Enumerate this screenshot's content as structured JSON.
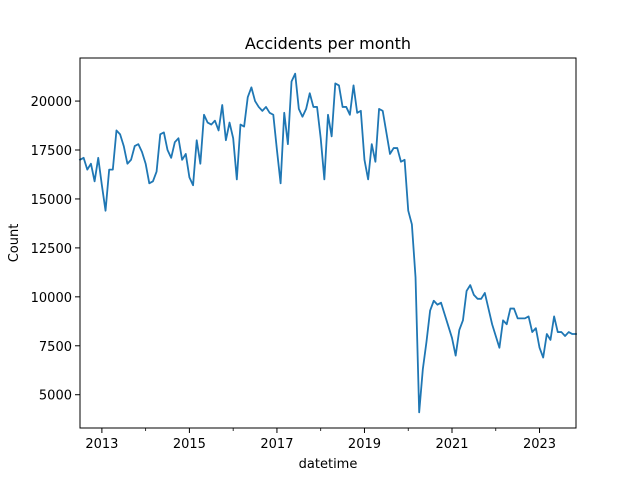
{
  "chart_data": {
    "type": "line",
    "title": "Accidents per month",
    "xlabel": "datetime",
    "ylabel": "Count",
    "x_axis": {
      "kind": "date",
      "range": [
        "2012-07",
        "2023-11"
      ],
      "major_ticks": [
        {
          "value": "2013-01",
          "label": "2013"
        },
        {
          "value": "2015-01",
          "label": "2015"
        },
        {
          "value": "2017-01",
          "label": "2017"
        },
        {
          "value": "2019-01",
          "label": "2019"
        },
        {
          "value": "2021-01",
          "label": "2021"
        },
        {
          "value": "2023-01",
          "label": "2023"
        }
      ],
      "minor_ticks": [
        "2014-01",
        "2016-01",
        "2018-01",
        "2020-01",
        "2022-01"
      ]
    },
    "y_axis": {
      "range": [
        3300,
        22200
      ],
      "ticks": [
        {
          "value": 5000,
          "label": "5000"
        },
        {
          "value": 7500,
          "label": "7500"
        },
        {
          "value": 10000,
          "label": "10000"
        },
        {
          "value": 12500,
          "label": "12500"
        },
        {
          "value": 15000,
          "label": "15000"
        },
        {
          "value": 17500,
          "label": "17500"
        },
        {
          "value": 20000,
          "label": "20000"
        }
      ]
    },
    "grid": false,
    "series": [
      {
        "color": "#1f77b4",
        "x": [
          "2012-07",
          "2012-08",
          "2012-09",
          "2012-10",
          "2012-11",
          "2012-12",
          "2013-01",
          "2013-02",
          "2013-03",
          "2013-04",
          "2013-05",
          "2013-06",
          "2013-07",
          "2013-08",
          "2013-09",
          "2013-10",
          "2013-11",
          "2013-12",
          "2014-01",
          "2014-02",
          "2014-03",
          "2014-04",
          "2014-05",
          "2014-06",
          "2014-07",
          "2014-08",
          "2014-09",
          "2014-10",
          "2014-11",
          "2014-12",
          "2015-01",
          "2015-02",
          "2015-03",
          "2015-04",
          "2015-05",
          "2015-06",
          "2015-07",
          "2015-08",
          "2015-09",
          "2015-10",
          "2015-11",
          "2015-12",
          "2016-01",
          "2016-02",
          "2016-03",
          "2016-04",
          "2016-05",
          "2016-06",
          "2016-07",
          "2016-08",
          "2016-09",
          "2016-10",
          "2016-11",
          "2016-12",
          "2017-01",
          "2017-02",
          "2017-03",
          "2017-04",
          "2017-05",
          "2017-06",
          "2017-07",
          "2017-08",
          "2017-09",
          "2017-10",
          "2017-11",
          "2017-12",
          "2018-01",
          "2018-02",
          "2018-03",
          "2018-04",
          "2018-05",
          "2018-06",
          "2018-07",
          "2018-08",
          "2018-09",
          "2018-10",
          "2018-11",
          "2018-12",
          "2019-01",
          "2019-02",
          "2019-03",
          "2019-04",
          "2019-05",
          "2019-06",
          "2019-07",
          "2019-08",
          "2019-09",
          "2019-10",
          "2019-11",
          "2019-12",
          "2020-01",
          "2020-02",
          "2020-03",
          "2020-04",
          "2020-05",
          "2020-06",
          "2020-07",
          "2020-08",
          "2020-09",
          "2020-10",
          "2020-11",
          "2020-12",
          "2021-01",
          "2021-02",
          "2021-03",
          "2021-04",
          "2021-05",
          "2021-06",
          "2021-07",
          "2021-08",
          "2021-09",
          "2021-10",
          "2021-11",
          "2021-12",
          "2022-01",
          "2022-02",
          "2022-03",
          "2022-04",
          "2022-05",
          "2022-06",
          "2022-07",
          "2022-08",
          "2022-09",
          "2022-10",
          "2022-11",
          "2022-12",
          "2023-01",
          "2023-02",
          "2023-03",
          "2023-04",
          "2023-05",
          "2023-06",
          "2023-07",
          "2023-08",
          "2023-09",
          "2023-10",
          "2023-11"
        ],
        "values": [
          17000,
          17100,
          16500,
          16800,
          15900,
          17100,
          15700,
          14400,
          16500,
          16500,
          18500,
          18300,
          17700,
          16800,
          17000,
          17700,
          17800,
          17400,
          16800,
          15800,
          15900,
          16400,
          18300,
          18400,
          17500,
          17100,
          17900,
          18100,
          17000,
          17300,
          16100,
          15700,
          18000,
          16800,
          19300,
          18900,
          18800,
          19000,
          18500,
          19800,
          18000,
          18900,
          18100,
          16000,
          18800,
          18700,
          20200,
          20700,
          20000,
          19700,
          19500,
          19700,
          19400,
          19300,
          17500,
          15800,
          19400,
          17800,
          21000,
          21400,
          19600,
          19200,
          19600,
          20400,
          19700,
          19700,
          18100,
          16000,
          19300,
          18200,
          20900,
          20800,
          19700,
          19700,
          19300,
          20800,
          19400,
          19500,
          17000,
          16000,
          17800,
          16900,
          19600,
          19500,
          18400,
          17300,
          17600,
          17600,
          16900,
          17000,
          14400,
          13700,
          11000,
          4100,
          6300,
          7700,
          9300,
          9800,
          9600,
          9700,
          9100,
          8500,
          7900,
          7000,
          8300,
          8800,
          10300,
          10600,
          10100,
          9900,
          9900,
          10200,
          9400,
          8600,
          8000,
          7400,
          8800,
          8600,
          9400,
          9400,
          8900,
          8900,
          8900,
          9000,
          8200,
          8400,
          7400,
          6900,
          8100,
          7800,
          9000,
          8200,
          8200,
          8000,
          8200,
          8100,
          8100
        ]
      }
    ]
  }
}
